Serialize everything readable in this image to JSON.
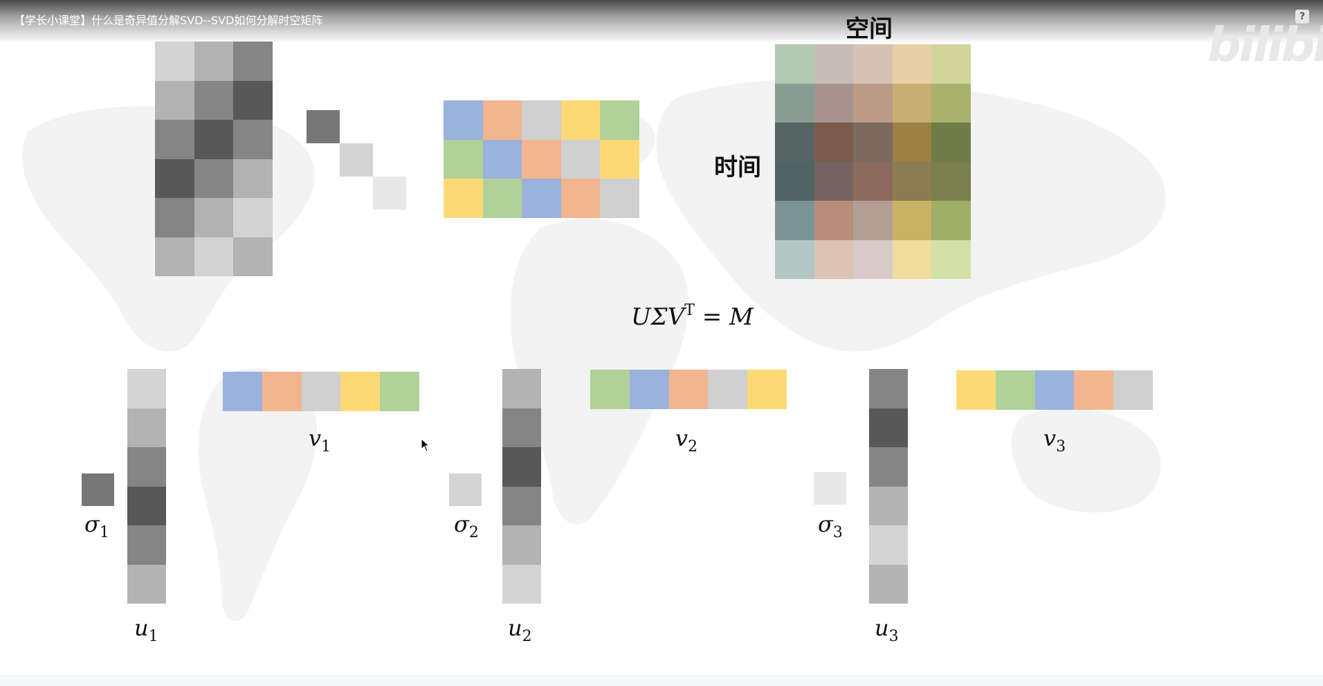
{
  "video": {
    "title": "【学长小课堂】什么是奇异值分解SVD--SVD如何分解时空矩阵"
  },
  "watermark": {
    "text": "bilibili"
  },
  "help": {
    "label": "?"
  },
  "colors": {
    "blue": "#9bb2dc",
    "orange": "#f3b58f",
    "gray": "#cfcfcf",
    "yellow": "#fdd976",
    "green": "#b0d198",
    "u_shades": [
      "#d4d4d4",
      "#b3b3b3",
      "#858585",
      "#585858"
    ]
  },
  "labels": {
    "space": "空间",
    "time": "时间",
    "equation": {
      "main": "UΣV",
      "sup": "T",
      "rhs": " = M"
    },
    "v": [
      {
        "base": "v",
        "sub": "1"
      },
      {
        "base": "v",
        "sub": "2"
      },
      {
        "base": "v",
        "sub": "3"
      }
    ],
    "u": [
      {
        "base": "u",
        "sub": "1"
      },
      {
        "base": "u",
        "sub": "2"
      },
      {
        "base": "u",
        "sub": "3"
      }
    ],
    "sigma": [
      {
        "base": "σ",
        "sub": "1"
      },
      {
        "base": "σ",
        "sub": "2"
      },
      {
        "base": "σ",
        "sub": "3"
      }
    ]
  },
  "matrices": {
    "U": [
      [
        "#d3d3d3",
        "#b2b2b2",
        "#858585"
      ],
      [
        "#b2b2b2",
        "#858585",
        "#585858"
      ],
      [
        "#858585",
        "#585858",
        "#858585"
      ],
      [
        "#585858",
        "#858585",
        "#b2b2b2"
      ],
      [
        "#858585",
        "#b2b2b2",
        "#d3d3d3"
      ],
      [
        "#b2b2b2",
        "#d3d3d3",
        "#b2b2b2"
      ]
    ],
    "Sigma": [
      "#777777",
      "#d4d4d4",
      "#e8e8e8"
    ],
    "VT": [
      [
        "#9bb2dc",
        "#f3b58f",
        "#cfcfcf",
        "#fdd976",
        "#b0d198"
      ],
      [
        "#b0d198",
        "#9bb2dc",
        "#f3b58f",
        "#cfcfcf",
        "#fdd976"
      ],
      [
        "#fdd976",
        "#b0d198",
        "#9bb2dc",
        "#f3b58f",
        "#cfcfcf"
      ]
    ],
    "M": [
      [
        "#b4c7b3",
        "#c7bbb8",
        "#d6c2b5",
        "#e8d0a6",
        "#d3d49c"
      ],
      [
        "#889c94",
        "#a6938f",
        "#bb9a88",
        "#c8ad72",
        "#a8b26c"
      ],
      [
        "#566564",
        "#7b5b4e",
        "#7c6a61",
        "#9e7f44",
        "#6f7c45"
      ],
      [
        "#526363",
        "#756363",
        "#8c6a5e",
        "#8c7c53",
        "#7b7f4b"
      ],
      [
        "#7b9596",
        "#b78e7c",
        "#b49f96",
        "#cab264",
        "#9fae66"
      ],
      [
        "#b4c6c4",
        "#dcc3b3",
        "#d8cac6",
        "#f0dc9c",
        "#d4e0a8"
      ]
    ]
  },
  "components": {
    "u": [
      [
        "#d4d4d4",
        "#b3b3b3",
        "#858585",
        "#585858",
        "#858585",
        "#b3b3b3"
      ],
      [
        "#b3b3b3",
        "#858585",
        "#585858",
        "#858585",
        "#b3b3b3",
        "#d4d4d4"
      ],
      [
        "#858585",
        "#585858",
        "#858585",
        "#b3b3b3",
        "#d4d4d4",
        "#b3b3b3"
      ]
    ],
    "sigma": [
      "#777777",
      "#d4d4d4",
      "#e8e8e8"
    ],
    "v": [
      [
        "#9bb2dc",
        "#f3b58f",
        "#cfcfcf",
        "#fdd976",
        "#b0d198"
      ],
      [
        "#b0d198",
        "#9bb2dc",
        "#f3b58f",
        "#cfcfcf",
        "#fdd976"
      ],
      [
        "#fdd976",
        "#b0d198",
        "#9bb2dc",
        "#f3b58f",
        "#cfcfcf"
      ]
    ]
  }
}
